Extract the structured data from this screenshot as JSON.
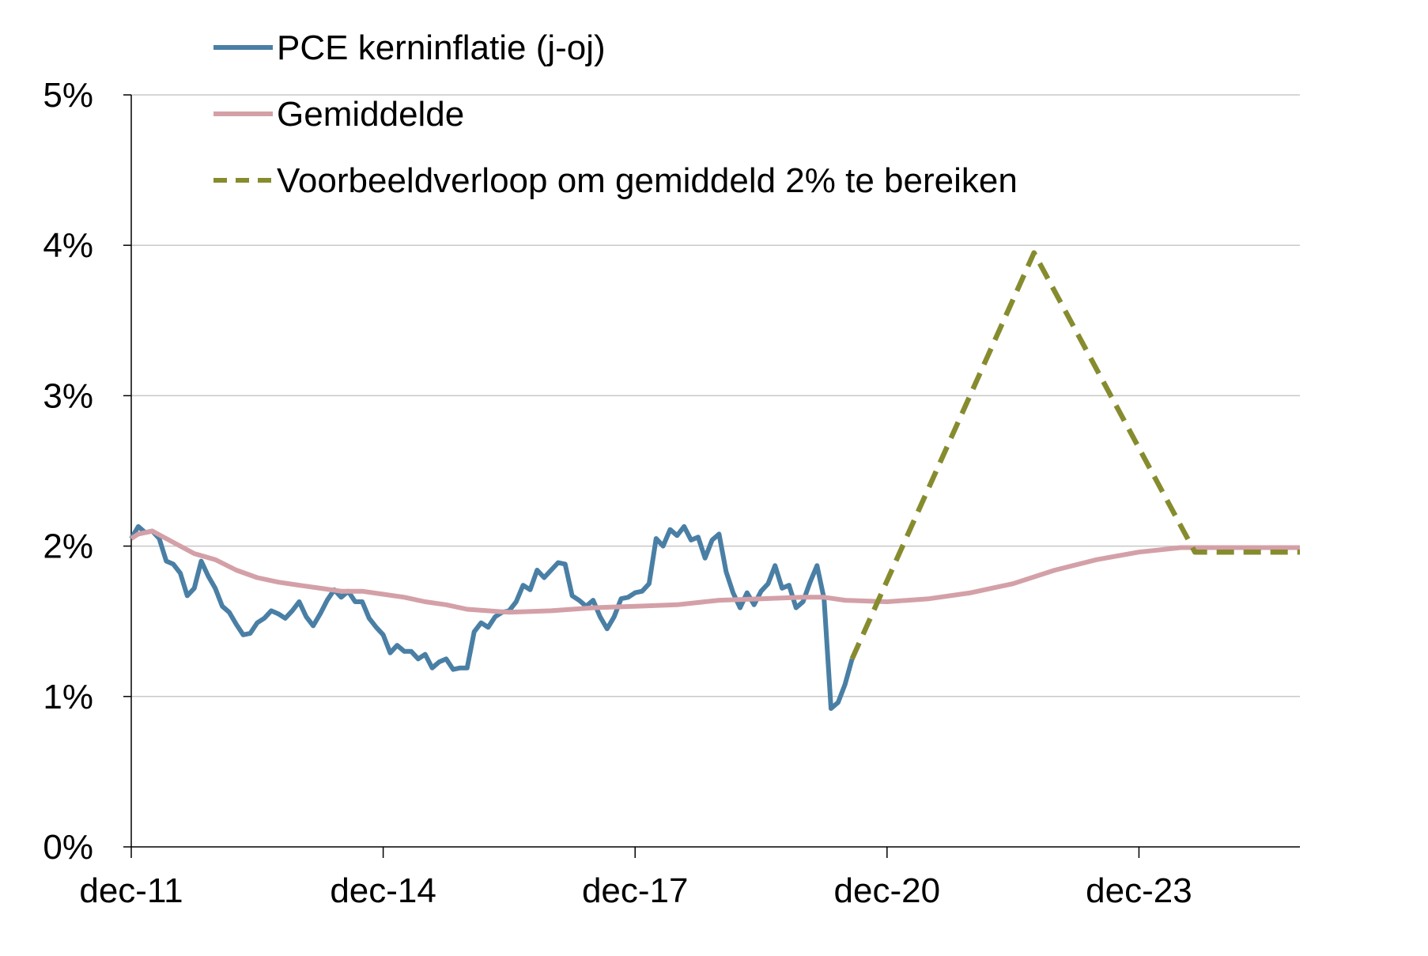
{
  "chart_data": {
    "type": "line",
    "title": "",
    "xlabel": "",
    "ylabel": "",
    "ylim": [
      0,
      5
    ],
    "y_ticks": [
      "0%",
      "1%",
      "2%",
      "3%",
      "4%",
      "5%"
    ],
    "x_ticks": [
      "dec-11",
      "dec-14",
      "dec-17",
      "dec-20",
      "dec-23"
    ],
    "x_range": [
      "2011-12",
      "2025-11"
    ],
    "grid": "horizontal",
    "legend_position": "top-left",
    "series": [
      {
        "name": "PCE kerninflatie (j-oj)",
        "color": "#4A7FA5",
        "style": "solid",
        "points": [
          [
            "2011-12",
            2.05
          ],
          [
            "2012-01",
            2.13
          ],
          [
            "2012-02",
            2.09
          ],
          [
            "2012-03",
            2.1
          ],
          [
            "2012-04",
            2.05
          ],
          [
            "2012-05",
            1.9
          ],
          [
            "2012-06",
            1.88
          ],
          [
            "2012-07",
            1.82
          ],
          [
            "2012-08",
            1.67
          ],
          [
            "2012-09",
            1.72
          ],
          [
            "2012-10",
            1.9
          ],
          [
            "2012-11",
            1.8
          ],
          [
            "2012-12",
            1.72
          ],
          [
            "2013-01",
            1.6
          ],
          [
            "2013-02",
            1.56
          ],
          [
            "2013-03",
            1.48
          ],
          [
            "2013-04",
            1.41
          ],
          [
            "2013-05",
            1.42
          ],
          [
            "2013-06",
            1.49
          ],
          [
            "2013-07",
            1.52
          ],
          [
            "2013-08",
            1.57
          ],
          [
            "2013-09",
            1.55
          ],
          [
            "2013-10",
            1.52
          ],
          [
            "2013-11",
            1.57
          ],
          [
            "2013-12",
            1.63
          ],
          [
            "2014-01",
            1.53
          ],
          [
            "2014-02",
            1.47
          ],
          [
            "2014-03",
            1.55
          ],
          [
            "2014-04",
            1.64
          ],
          [
            "2014-05",
            1.71
          ],
          [
            "2014-06",
            1.66
          ],
          [
            "2014-07",
            1.7
          ],
          [
            "2014-08",
            1.63
          ],
          [
            "2014-09",
            1.63
          ],
          [
            "2014-10",
            1.52
          ],
          [
            "2014-11",
            1.46
          ],
          [
            "2014-12",
            1.41
          ],
          [
            "2015-01",
            1.29
          ],
          [
            "2015-02",
            1.34
          ],
          [
            "2015-03",
            1.3
          ],
          [
            "2015-04",
            1.3
          ],
          [
            "2015-05",
            1.25
          ],
          [
            "2015-06",
            1.28
          ],
          [
            "2015-07",
            1.19
          ],
          [
            "2015-08",
            1.23
          ],
          [
            "2015-09",
            1.25
          ],
          [
            "2015-10",
            1.18
          ],
          [
            "2015-11",
            1.19
          ],
          [
            "2015-12",
            1.19
          ],
          [
            "2016-01",
            1.43
          ],
          [
            "2016-02",
            1.49
          ],
          [
            "2016-03",
            1.46
          ],
          [
            "2016-04",
            1.53
          ],
          [
            "2016-05",
            1.56
          ],
          [
            "2016-06",
            1.57
          ],
          [
            "2016-07",
            1.63
          ],
          [
            "2016-08",
            1.74
          ],
          [
            "2016-09",
            1.71
          ],
          [
            "2016-10",
            1.84
          ],
          [
            "2016-11",
            1.79
          ],
          [
            "2016-12",
            1.84
          ],
          [
            "2017-01",
            1.89
          ],
          [
            "2017-02",
            1.88
          ],
          [
            "2017-03",
            1.67
          ],
          [
            "2017-04",
            1.64
          ],
          [
            "2017-05",
            1.6
          ],
          [
            "2017-06",
            1.64
          ],
          [
            "2017-07",
            1.53
          ],
          [
            "2017-08",
            1.45
          ],
          [
            "2017-09",
            1.53
          ],
          [
            "2017-10",
            1.65
          ],
          [
            "2017-11",
            1.66
          ],
          [
            "2017-12",
            1.69
          ],
          [
            "2018-01",
            1.7
          ],
          [
            "2018-02",
            1.75
          ],
          [
            "2018-03",
            2.05
          ],
          [
            "2018-04",
            2.0
          ],
          [
            "2018-05",
            2.11
          ],
          [
            "2018-06",
            2.07
          ],
          [
            "2018-07",
            2.13
          ],
          [
            "2018-08",
            2.04
          ],
          [
            "2018-09",
            2.06
          ],
          [
            "2018-10",
            1.92
          ],
          [
            "2018-11",
            2.04
          ],
          [
            "2018-12",
            2.08
          ],
          [
            "2019-01",
            1.83
          ],
          [
            "2019-02",
            1.69
          ],
          [
            "2019-03",
            1.59
          ],
          [
            "2019-04",
            1.69
          ],
          [
            "2019-05",
            1.61
          ],
          [
            "2019-06",
            1.7
          ],
          [
            "2019-07",
            1.75
          ],
          [
            "2019-08",
            1.87
          ],
          [
            "2019-09",
            1.72
          ],
          [
            "2019-10",
            1.74
          ],
          [
            "2019-11",
            1.59
          ],
          [
            "2019-12",
            1.63
          ],
          [
            "2020-01",
            1.76
          ],
          [
            "2020-02",
            1.87
          ],
          [
            "2020-03",
            1.65
          ],
          [
            "2020-04",
            0.92
          ],
          [
            "2020-05",
            0.96
          ],
          [
            "2020-06",
            1.08
          ],
          [
            "2020-07",
            1.25
          ]
        ]
      },
      {
        "name": "Gemiddelde",
        "color": "#D4A0A7",
        "style": "solid",
        "points": [
          [
            "2011-12",
            2.05
          ],
          [
            "2012-01",
            2.08
          ],
          [
            "2012-03",
            2.1
          ],
          [
            "2012-05",
            2.05
          ],
          [
            "2012-07",
            2.0
          ],
          [
            "2012-09",
            1.95
          ],
          [
            "2012-12",
            1.91
          ],
          [
            "2013-03",
            1.84
          ],
          [
            "2013-06",
            1.79
          ],
          [
            "2013-09",
            1.76
          ],
          [
            "2013-12",
            1.74
          ],
          [
            "2014-03",
            1.72
          ],
          [
            "2014-06",
            1.7
          ],
          [
            "2014-09",
            1.7
          ],
          [
            "2014-12",
            1.68
          ],
          [
            "2015-03",
            1.66
          ],
          [
            "2015-06",
            1.63
          ],
          [
            "2015-09",
            1.61
          ],
          [
            "2015-12",
            1.58
          ],
          [
            "2016-06",
            1.56
          ],
          [
            "2016-12",
            1.57
          ],
          [
            "2017-06",
            1.59
          ],
          [
            "2017-12",
            1.6
          ],
          [
            "2018-06",
            1.61
          ],
          [
            "2018-12",
            1.64
          ],
          [
            "2019-06",
            1.65
          ],
          [
            "2019-12",
            1.66
          ],
          [
            "2020-03",
            1.66
          ],
          [
            "2020-06",
            1.64
          ],
          [
            "2020-12",
            1.63
          ],
          [
            "2021-06",
            1.65
          ],
          [
            "2021-12",
            1.69
          ],
          [
            "2022-06",
            1.75
          ],
          [
            "2022-12",
            1.84
          ],
          [
            "2023-06",
            1.91
          ],
          [
            "2023-12",
            1.96
          ],
          [
            "2024-06",
            1.99
          ],
          [
            "2024-12",
            1.99
          ],
          [
            "2025-11",
            1.99
          ]
        ]
      },
      {
        "name": "Voorbeeldverloop om gemiddeld 2% te bereiken",
        "color": "#868C2E",
        "style": "dashed",
        "points": [
          [
            "2020-07",
            1.25
          ],
          [
            "2022-09",
            3.95
          ],
          [
            "2024-08",
            1.96
          ],
          [
            "2025-11",
            1.96
          ]
        ]
      }
    ]
  }
}
